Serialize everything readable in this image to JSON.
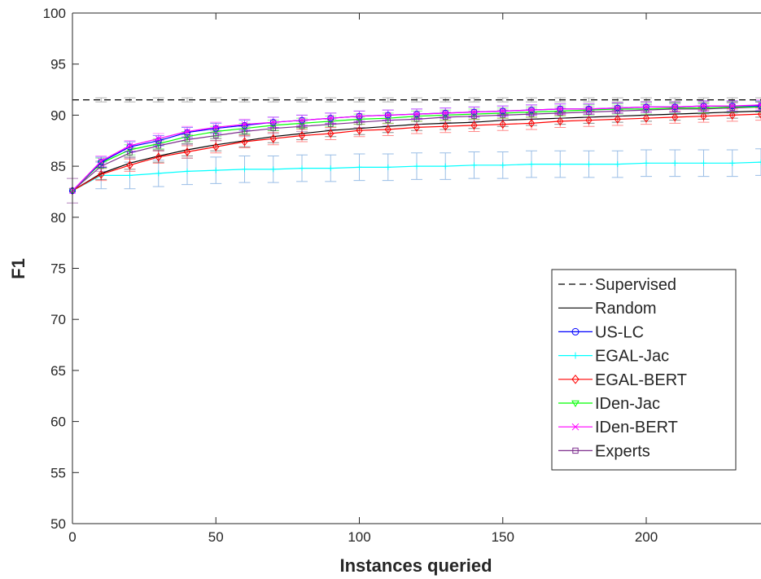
{
  "chart_data": {
    "type": "line",
    "title": "",
    "xlabel": "Instances queried",
    "ylabel": "F1",
    "xlim": [
      0,
      240
    ],
    "ylim": [
      50,
      100
    ],
    "xticks": [
      0,
      50,
      100,
      150,
      200
    ],
    "yticks": [
      50,
      55,
      60,
      65,
      70,
      75,
      80,
      85,
      90,
      95,
      100
    ],
    "grid": false,
    "legend_position": "lower-right",
    "x": [
      0,
      10,
      20,
      30,
      40,
      50,
      60,
      70,
      80,
      90,
      100,
      110,
      120,
      130,
      140,
      150,
      160,
      170,
      180,
      190,
      200,
      210,
      220,
      230,
      240
    ],
    "series": [
      {
        "name": "Supervised",
        "color": "#000000",
        "style": "dashed",
        "marker": "none",
        "values": [
          91.5,
          91.5,
          91.5,
          91.5,
          91.5,
          91.5,
          91.5,
          91.5,
          91.5,
          91.5,
          91.5,
          91.5,
          91.5,
          91.5,
          91.5,
          91.5,
          91.5,
          91.5,
          91.5,
          91.5,
          91.5,
          91.5,
          91.5,
          91.5,
          91.5
        ],
        "error": 0.2
      },
      {
        "name": "Random",
        "color": "#000000",
        "style": "solid",
        "marker": "none",
        "values": [
          82.6,
          84.3,
          85.3,
          86.0,
          86.6,
          87.1,
          87.5,
          87.9,
          88.2,
          88.5,
          88.7,
          88.9,
          89.1,
          89.2,
          89.3,
          89.5,
          89.6,
          89.7,
          89.8,
          89.9,
          90.0,
          90.1,
          90.2,
          90.3,
          90.4
        ],
        "error": 0.6
      },
      {
        "name": "US-LC",
        "color": "#0000ff",
        "style": "solid",
        "marker": "circle",
        "values": [
          82.6,
          85.4,
          86.9,
          87.5,
          88.3,
          88.7,
          89.0,
          89.3,
          89.5,
          89.7,
          89.9,
          90.0,
          90.1,
          90.2,
          90.3,
          90.4,
          90.5,
          90.6,
          90.6,
          90.7,
          90.8,
          90.8,
          90.9,
          90.9,
          90.9
        ],
        "error": 0.5
      },
      {
        "name": "EGAL-Jac",
        "color": "#00ffff",
        "style": "solid",
        "marker": "plus",
        "values": [
          82.6,
          84.1,
          84.1,
          84.3,
          84.5,
          84.6,
          84.7,
          84.7,
          84.8,
          84.8,
          84.9,
          84.9,
          85.0,
          85.0,
          85.1,
          85.1,
          85.2,
          85.2,
          85.2,
          85.2,
          85.3,
          85.3,
          85.3,
          85.3,
          85.4
        ],
        "error": 1.3
      },
      {
        "name": "EGAL-BERT",
        "color": "#ff0000",
        "style": "solid",
        "marker": "diamond",
        "values": [
          82.6,
          84.2,
          85.1,
          85.9,
          86.4,
          86.9,
          87.4,
          87.7,
          88.0,
          88.2,
          88.5,
          88.6,
          88.8,
          88.9,
          89.0,
          89.1,
          89.2,
          89.4,
          89.5,
          89.6,
          89.7,
          89.8,
          89.9,
          90.0,
          90.1
        ],
        "error": 0.6
      },
      {
        "name": "IDen-Jac",
        "color": "#00ff00",
        "style": "solid",
        "marker": "triangle-down",
        "values": [
          82.6,
          85.3,
          86.6,
          87.2,
          87.9,
          88.4,
          88.7,
          89.0,
          89.2,
          89.4,
          89.6,
          89.7,
          89.9,
          90.0,
          90.1,
          90.2,
          90.3,
          90.4,
          90.5,
          90.6,
          90.6,
          90.7,
          90.7,
          90.8,
          90.8
        ],
        "error": 0.5
      },
      {
        "name": "IDen-BERT",
        "color": "#ff00ff",
        "style": "solid",
        "marker": "x",
        "values": [
          82.6,
          85.5,
          87.0,
          87.7,
          88.4,
          88.8,
          89.1,
          89.3,
          89.5,
          89.7,
          89.9,
          90.0,
          90.1,
          90.2,
          90.3,
          90.4,
          90.5,
          90.6,
          90.6,
          90.7,
          90.8,
          90.8,
          90.9,
          90.9,
          91.0
        ],
        "error": 0.5
      },
      {
        "name": "Experts",
        "color": "#7e2f8e",
        "style": "solid",
        "marker": "square",
        "values": [
          82.6,
          85.0,
          86.3,
          87.0,
          87.6,
          88.0,
          88.4,
          88.7,
          88.9,
          89.1,
          89.3,
          89.5,
          89.6,
          89.8,
          89.9,
          90.0,
          90.1,
          90.2,
          90.3,
          90.4,
          90.5,
          90.6,
          90.6,
          90.7,
          90.8
        ],
        "error": 0.5
      }
    ]
  }
}
